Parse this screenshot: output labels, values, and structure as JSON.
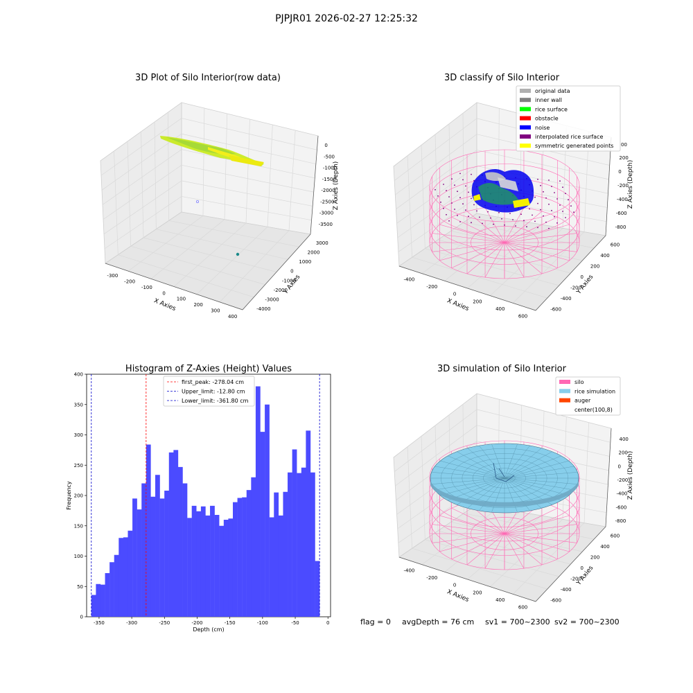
{
  "suptitle": "PJPJR01 2026-02-27 12:25:32",
  "status": {
    "flag": "flag = 0",
    "avg_depth": "avgDepth = 76 cm",
    "sv1": "sv1 = 700~2300",
    "sv2": "sv2 = 700~2300"
  },
  "colors": {
    "hist_bar": "#4b4bff",
    "first_peak": "#ff0000",
    "limits": "#0000cc",
    "silo": "#ff69b4",
    "rice": "#87ceeb",
    "auger": "#ff4500",
    "rice_surface": "#00ff00",
    "noise": "#0000ff",
    "symmetric": "#ffff00",
    "original": "#b0b0b0",
    "inner_wall": "#808080",
    "obstacle": "#ff0000",
    "interpolated": "#800080"
  },
  "chart_data": [
    {
      "type": "scatter",
      "title": "3D Plot of Silo Interior(row data)",
      "xlabel": "X Axies",
      "ylabel": "Y Axies",
      "zlabel": "Z Axies (Depth)",
      "x_ticks": [
        "-300",
        "-200",
        "-100",
        "0",
        "100",
        "200",
        "300",
        "400"
      ],
      "y_ticks": [
        "3000",
        "2000",
        "1000",
        "0",
        "-1000",
        "-2000",
        "-3000",
        "-4000"
      ],
      "z_ticks": [
        "0",
        "-500",
        "-1000",
        "-1500",
        "-2000",
        "-2500",
        "-3000",
        "-3500"
      ]
    },
    {
      "type": "scatter",
      "title": "3D classify of Silo Interior",
      "xlabel": "X Axies",
      "ylabel": "Y Axies",
      "zlabel": "Z Axies (Depth)",
      "x_ticks": [
        "-400",
        "-200",
        "0",
        "200",
        "400",
        "600"
      ],
      "y_ticks": [
        "600",
        "400",
        "200",
        "0",
        "-200",
        "-400",
        "-600"
      ],
      "z_ticks": [
        "200",
        "0",
        "-200",
        "-400",
        "-600",
        "-800"
      ],
      "z_ticks_top": "00",
      "legend": [
        {
          "label": "original data",
          "color": "#b0b0b0"
        },
        {
          "label": "inner wall",
          "color": "#808080"
        },
        {
          "label": "rice surface",
          "color": "#00ff00"
        },
        {
          "label": "obstacle",
          "color": "#ff0000"
        },
        {
          "label": "noise",
          "color": "#0000ff"
        },
        {
          "label": "interpolated rice surface",
          "color": "#800080"
        },
        {
          "label": "symmetric generated points",
          "color": "#ffff00"
        }
      ]
    },
    {
      "type": "bar",
      "title": "Histogram of Z-Axies (Height) Values",
      "xlabel": "Depth (cm)",
      "ylabel": "Frequency",
      "xlim": [
        -369,
        4
      ],
      "ylim": [
        0,
        400
      ],
      "x_ticks": [
        -350,
        -300,
        -250,
        -200,
        -150,
        -100,
        -50,
        0
      ],
      "y_ticks": [
        0,
        50,
        100,
        150,
        200,
        250,
        300,
        350,
        400
      ],
      "bin_start": -361.8,
      "bin_width": 6.98,
      "values": [
        36,
        54,
        53,
        72,
        90,
        102,
        130,
        131,
        142,
        195,
        177,
        220,
        284,
        198,
        234,
        195,
        208,
        271,
        275,
        247,
        220,
        163,
        183,
        174,
        182,
        167,
        183,
        168,
        150,
        160,
        162,
        189,
        196,
        197,
        209,
        230,
        380,
        305,
        350,
        164,
        205,
        167,
        206,
        238,
        276,
        237,
        246,
        307,
        238,
        92
      ],
      "lines": [
        {
          "name": "first_peak",
          "label": "first_peak: -278.04 cm",
          "x": -278.04,
          "color": "#ff0000"
        },
        {
          "name": "upper_limit",
          "label": "Upper_limit: -12.80 cm",
          "x": -12.8,
          "color": "#0000cc"
        },
        {
          "name": "lower_limit",
          "label": "Lower_limit: -361.80 cm",
          "x": -361.8,
          "color": "#0000cc"
        }
      ],
      "legend_position": "upper-center"
    },
    {
      "type": "area",
      "title": "3D simulation of Silo Interior",
      "xlabel": "X Axies",
      "ylabel": "Y Axies",
      "zlabel": "Z Axies (Depth)",
      "x_ticks": [
        "-400",
        "-200",
        "0",
        "200",
        "400",
        "600"
      ],
      "y_ticks": [
        "600",
        "400",
        "200",
        "0",
        "-200",
        "-400",
        "-600"
      ],
      "z_ticks": [
        "400",
        "200",
        "0",
        "-200",
        "-400",
        "-600",
        "-800"
      ],
      "legend": [
        {
          "label": "silo",
          "color": "#ff69b4"
        },
        {
          "label": "rice simulation",
          "color": "#87ceeb"
        },
        {
          "label": "auger",
          "color": "#ff4500"
        },
        {
          "label": "center(100,8)",
          "color": "#ffffff"
        }
      ]
    }
  ]
}
